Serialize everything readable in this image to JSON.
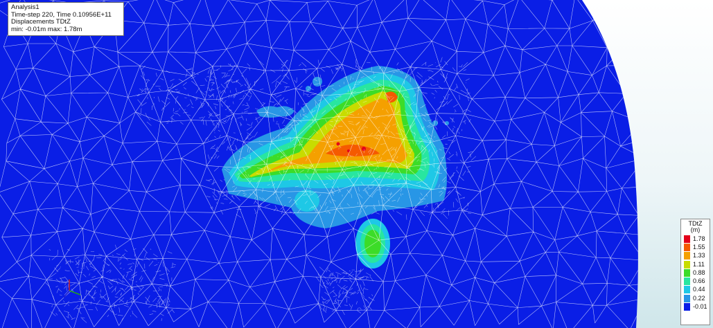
{
  "info": {
    "line1": "Analysis1",
    "line2": "Time-step 220, Time 0.10956E+11",
    "line3": "Displacements TDtZ",
    "line4": "min: -0.01m max:  1.78m"
  },
  "legend": {
    "title": "TDtZ",
    "unit": "(m)",
    "entries": [
      {
        "label": "1.78",
        "color": "#e3001a"
      },
      {
        "label": "1.55",
        "color": "#f55a00"
      },
      {
        "label": "1.33",
        "color": "#f5a000"
      },
      {
        "label": "1.11",
        "color": "#c8dc00"
      },
      {
        "label": "0.88",
        "color": "#3cdc28"
      },
      {
        "label": "0.66",
        "color": "#28e6a0"
      },
      {
        "label": "0.44",
        "color": "#1ec8e6"
      },
      {
        "label": "0.22",
        "color": "#2896e6"
      },
      {
        "label": "-0.01",
        "color": "#0a1ee6"
      }
    ]
  },
  "colors": {
    "mesh_background": "#0a1ee6",
    "mesh_lines": "#ffffff"
  }
}
